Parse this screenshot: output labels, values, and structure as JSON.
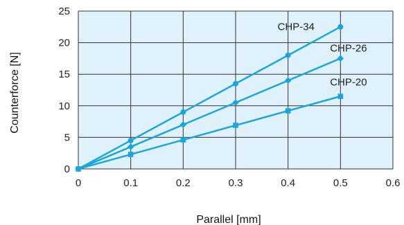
{
  "chart_data": {
    "type": "line",
    "title": "",
    "xlabel": "Parallel [mm]",
    "ylabel": "Counterforce [N]",
    "xlim": [
      0,
      0.6
    ],
    "ylim": [
      0,
      25
    ],
    "xticks": [
      0,
      0.1,
      0.2,
      0.3,
      0.4,
      0.5,
      0.6
    ],
    "xtick_labels": [
      "0",
      "0.1",
      "0.2",
      "0.3",
      "0.4",
      "0.5",
      "0.6"
    ],
    "yticks": [
      0,
      5,
      10,
      15,
      20,
      25
    ],
    "ytick_labels": [
      "0",
      "5",
      "10",
      "15",
      "20",
      "25"
    ],
    "grid": true,
    "legend": "inline labels near line ends",
    "colors": {
      "plot_background": "#dff1fa",
      "grid": "#333333",
      "series": "#1aa6dd"
    },
    "series": [
      {
        "name": "CHP-34",
        "marker": "circle",
        "x": [
          0,
          0.1,
          0.2,
          0.3,
          0.4,
          0.5
        ],
        "y": [
          0,
          4.5,
          9,
          13.5,
          18,
          22.5
        ]
      },
      {
        "name": "CHP-26",
        "marker": "diamond",
        "x": [
          0,
          0.1,
          0.2,
          0.3,
          0.4,
          0.5
        ],
        "y": [
          0,
          3.5,
          7,
          10.5,
          14,
          17.5
        ]
      },
      {
        "name": "CHP-20",
        "marker": "square",
        "x": [
          0,
          0.1,
          0.2,
          0.3,
          0.4,
          0.5
        ],
        "y": [
          0,
          2.3,
          4.6,
          6.9,
          9.2,
          11.5
        ]
      }
    ]
  }
}
